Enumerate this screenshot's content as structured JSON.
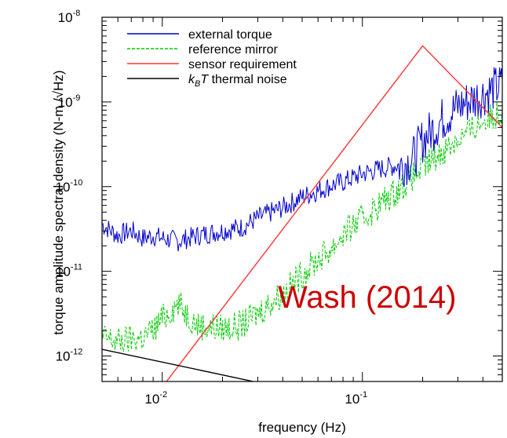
{
  "chart_data": {
    "type": "line",
    "xlabel": "frequency (Hz)",
    "ylabel": "torque amplitude spectral density (N-m /√Hz)",
    "xscale": "log",
    "yscale": "log",
    "xlim": [
      0.005,
      0.5
    ],
    "ylim": [
      5e-13,
      1e-08
    ],
    "x_ticks": [
      {
        "value": 0.01,
        "base": "10",
        "exp": "-2"
      },
      {
        "value": 0.1,
        "base": "10",
        "exp": "-1"
      }
    ],
    "y_ticks": [
      {
        "value": 1e-12,
        "base": "10",
        "exp": "-12"
      },
      {
        "value": 1e-11,
        "base": "10",
        "exp": "-11"
      },
      {
        "value": 1e-10,
        "base": "10",
        "exp": "-10"
      },
      {
        "value": 1e-09,
        "base": "10",
        "exp": "-9"
      },
      {
        "value": 1e-08,
        "base": "10",
        "exp": "-8"
      }
    ],
    "legend_position": "top-left",
    "annotation": "Wash (2014)",
    "series": [
      {
        "name": "external torque",
        "color": "#0000cc",
        "style": "solid",
        "x": [
          0.005,
          0.006,
          0.007,
          0.008,
          0.009,
          0.01,
          0.012,
          0.015,
          0.02,
          0.025,
          0.03,
          0.04,
          0.05,
          0.06,
          0.07,
          0.08,
          0.1,
          0.12,
          0.15,
          0.18,
          0.2,
          0.25,
          0.3,
          0.35,
          0.4,
          0.45,
          0.5
        ],
        "y": [
          3.8e-11,
          2.8e-11,
          3.2e-11,
          2.6e-11,
          2.8e-11,
          2.6e-11,
          2.4e-11,
          2.8e-11,
          3.2e-11,
          3.5e-11,
          4.5e-11,
          6e-11,
          8e-11,
          9.5e-11,
          1.1e-10,
          1.2e-10,
          1.5e-10,
          1.7e-10,
          1.9e-10,
          2.5e-10,
          4e-10,
          7e-10,
          1e-09,
          1.2e-09,
          1.4e-09,
          1.6e-09,
          1.8e-09
        ]
      },
      {
        "name": "reference mirror",
        "color": "#00cc00",
        "style": "dashed",
        "x": [
          0.005,
          0.006,
          0.007,
          0.008,
          0.009,
          0.01,
          0.012,
          0.015,
          0.02,
          0.025,
          0.03,
          0.04,
          0.05,
          0.06,
          0.07,
          0.08,
          0.1,
          0.12,
          0.15,
          0.2,
          0.25,
          0.3,
          0.35,
          0.4,
          0.45,
          0.5
        ],
        "y": [
          1.8e-12,
          1.6e-12,
          1.7e-12,
          1.8e-12,
          2.2e-12,
          3e-12,
          4.5e-12,
          2.5e-12,
          2.3e-12,
          2.5e-12,
          3.5e-12,
          6e-12,
          1e-11,
          1.5e-11,
          2e-11,
          3e-11,
          4.5e-11,
          6.5e-11,
          1e-10,
          1.8e-10,
          2.8e-10,
          4e-10,
          5e-10,
          6.5e-10,
          7.5e-10,
          8.5e-10
        ]
      },
      {
        "name": "sensor requirement",
        "color": "#ff3333",
        "style": "solid",
        "x": [
          0.0105,
          0.2,
          0.5
        ],
        "y": [
          5e-13,
          4.6e-09,
          5e-10
        ]
      },
      {
        "name": "k_BT thermal noise",
        "name_parts": {
          "k": "k",
          "sub": "B",
          "T": "T",
          "rest": " thermal noise"
        },
        "color": "#000000",
        "style": "solid",
        "x": [
          0.005,
          0.0285
        ],
        "y": [
          1.2e-12,
          5e-13
        ]
      }
    ]
  }
}
